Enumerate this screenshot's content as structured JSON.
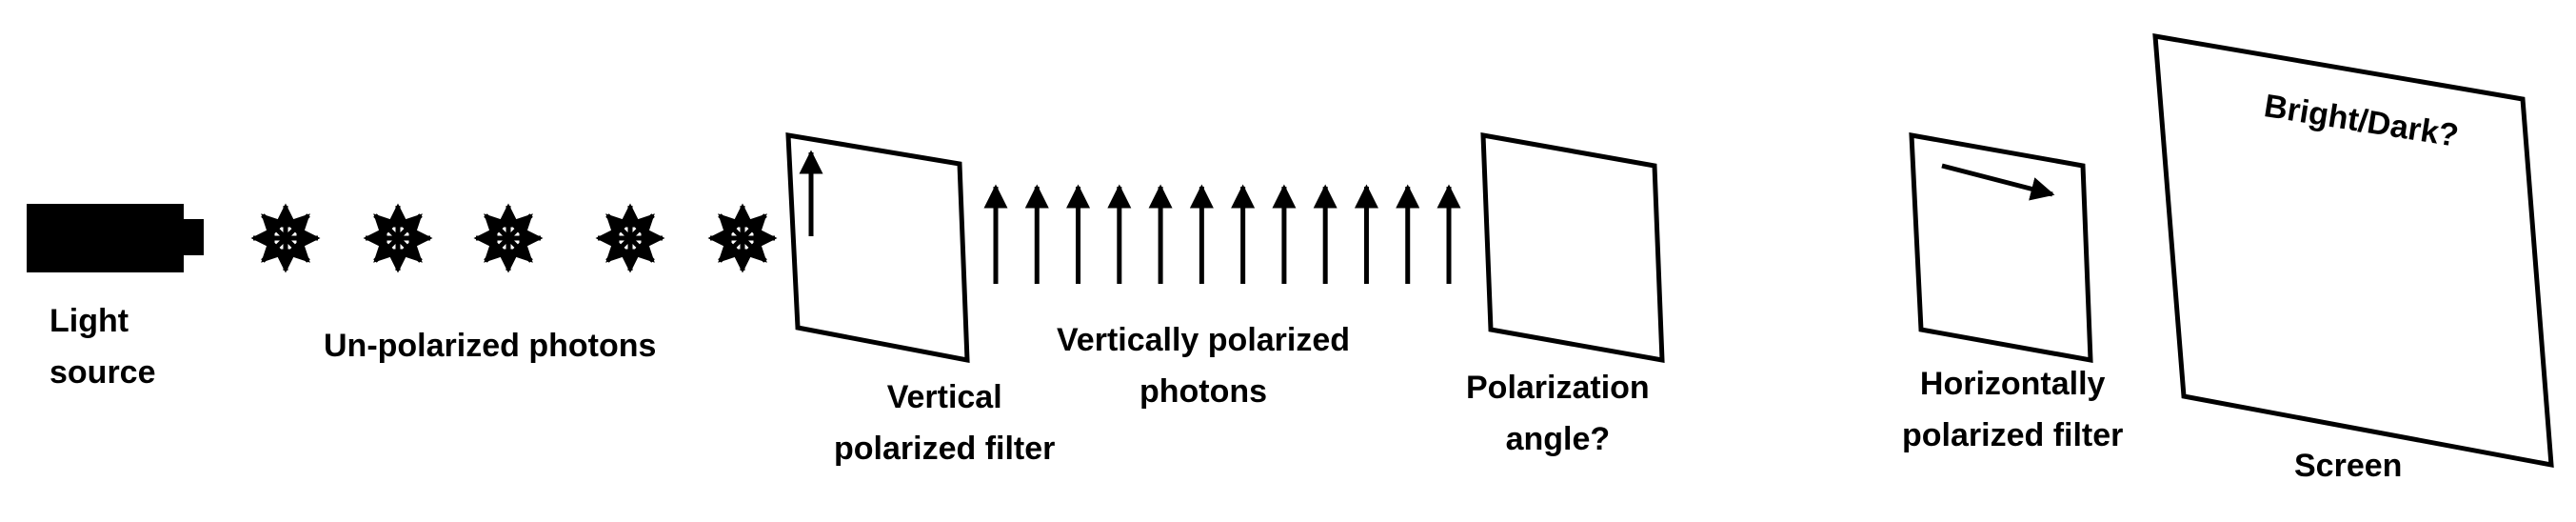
{
  "labels": {
    "light_source": [
      "Light",
      "source"
    ],
    "unpolarized_photons": "Un-polarized photons",
    "vertical_filter": [
      "Vertical",
      "polarized filter"
    ],
    "vertically_polarized_photons": [
      "Vertically polarized",
      "photons"
    ],
    "polarization_angle": [
      "Polarization",
      "angle?"
    ],
    "horizontal_filter": [
      "Horizontally",
      "polarized filter"
    ],
    "screen": "Screen",
    "screen_question": "Bright/Dark?"
  },
  "counts": {
    "unpolarized_photons": 5,
    "vertical_photon_arrows": 12
  },
  "colors": {
    "ink": "#000000",
    "background": "#ffffff"
  }
}
